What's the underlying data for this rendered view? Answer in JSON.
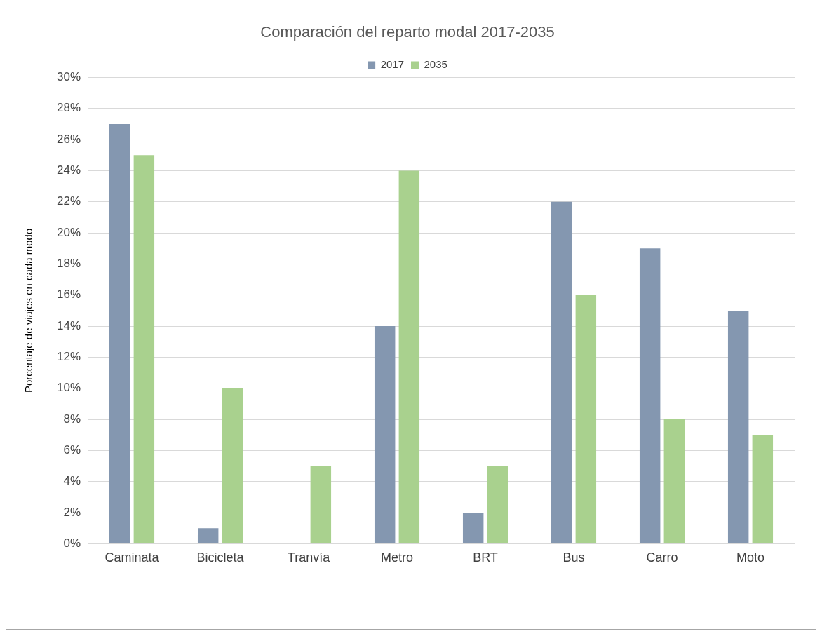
{
  "chart_data": {
    "type": "bar",
    "title": "Comparación del reparto modal 2017-2035",
    "ylabel": "Porcentaje de viajes en cada modo",
    "categories": [
      "Caminata",
      "Bicicleta",
      "Tranvía",
      "Metro",
      "BRT",
      "Bus",
      "Carro",
      "Moto"
    ],
    "series": [
      {
        "name": "2017",
        "color": "#8497b0",
        "values": [
          27,
          1,
          0,
          14,
          2,
          22,
          19,
          15
        ]
      },
      {
        "name": "2035",
        "color": "#a9d18e",
        "values": [
          25,
          10,
          5,
          24,
          5,
          16,
          8,
          7
        ]
      }
    ],
    "ylim": [
      0,
      30
    ],
    "yticks": [
      {
        "value": 0,
        "label": "0%"
      },
      {
        "value": 2,
        "label": "2%"
      },
      {
        "value": 4,
        "label": "4%"
      },
      {
        "value": 6,
        "label": "6%"
      },
      {
        "value": 8,
        "label": "8%"
      },
      {
        "value": 10,
        "label": "10%"
      },
      {
        "value": 12,
        "label": "12%"
      },
      {
        "value": 14,
        "label": "14%"
      },
      {
        "value": 16,
        "label": "16%"
      },
      {
        "value": 18,
        "label": "18%"
      },
      {
        "value": 20,
        "label": "20%"
      },
      {
        "value": 22,
        "label": "22%"
      },
      {
        "value": 24,
        "label": "24%"
      },
      {
        "value": 26,
        "label": "26%"
      },
      {
        "value": 28,
        "label": "28%"
      },
      {
        "value": 30,
        "label": "30%"
      }
    ],
    "grid": "y",
    "legend": "top"
  }
}
